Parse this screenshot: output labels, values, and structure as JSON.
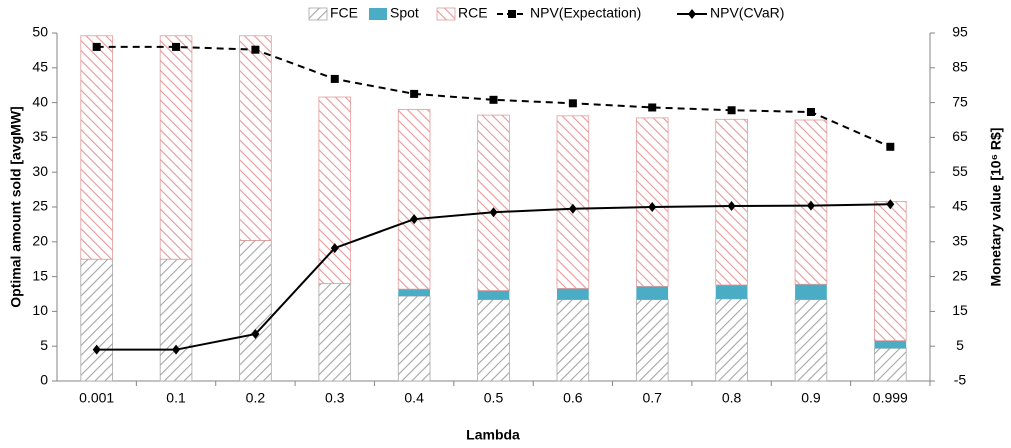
{
  "chart_data": {
    "type": "bar",
    "stacked": true,
    "xlabel": "Lambda",
    "ylabel": "Optimal amount sold [avgMW]",
    "y2label": "Monetary value [10⁶ R$]",
    "categories": [
      "0.001",
      "0.1",
      "0.2",
      "0.3",
      "0.4",
      "0.5",
      "0.6",
      "0.7",
      "0.8",
      "0.9",
      "0.999"
    ],
    "series": [
      {
        "name": "FCE",
        "type": "bar",
        "color": "#a6a6a6",
        "fill": "hatch-up",
        "values": [
          17.5,
          17.5,
          20.2,
          14.0,
          12.2,
          11.7,
          11.7,
          11.7,
          11.8,
          11.7,
          4.7
        ]
      },
      {
        "name": "Spot",
        "type": "bar",
        "color": "#4bacc6",
        "fill": "solid",
        "values": [
          0,
          0,
          0,
          0,
          1.0,
          1.3,
          1.6,
          1.9,
          2.0,
          2.2,
          1.1
        ]
      },
      {
        "name": "RCE",
        "type": "bar",
        "color": "#e39a9a",
        "fill": "hatch-down",
        "values": [
          32.1,
          32.1,
          29.4,
          26.8,
          25.8,
          25.2,
          24.8,
          24.2,
          23.8,
          23.6,
          20.0
        ]
      },
      {
        "name": "NPV(Expectation)",
        "type": "line",
        "axis": "y2",
        "color": "#000000",
        "dash": true,
        "marker": "square",
        "values": [
          91.0,
          91.0,
          90.2,
          81.8,
          77.5,
          75.8,
          74.8,
          73.6,
          72.8,
          72.3,
          62.3
        ]
      },
      {
        "name": "NPV(CVaR)",
        "type": "line",
        "axis": "y2",
        "color": "#000000",
        "dash": false,
        "marker": "diamond",
        "values": [
          4.0,
          4.0,
          8.5,
          33.2,
          41.5,
          43.5,
          44.5,
          45.0,
          45.3,
          45.4,
          45.8
        ]
      }
    ],
    "ylim": [
      0,
      50
    ],
    "yticks": [
      0,
      5,
      10,
      15,
      20,
      25,
      30,
      35,
      40,
      45,
      50
    ],
    "y2lim": [
      -5,
      95
    ],
    "y2ticks": [
      -5,
      5,
      15,
      25,
      35,
      45,
      55,
      65,
      75,
      85,
      95
    ],
    "grid": false,
    "legend": "top"
  }
}
